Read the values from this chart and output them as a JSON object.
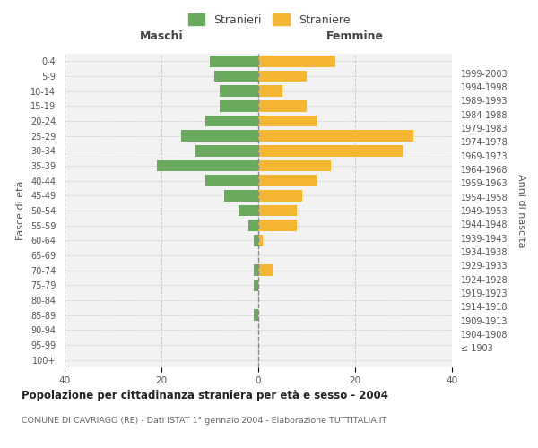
{
  "age_groups": [
    "100+",
    "95-99",
    "90-94",
    "85-89",
    "80-84",
    "75-79",
    "70-74",
    "65-69",
    "60-64",
    "55-59",
    "50-54",
    "45-49",
    "40-44",
    "35-39",
    "30-34",
    "25-29",
    "20-24",
    "15-19",
    "10-14",
    "5-9",
    "0-4"
  ],
  "birth_years": [
    "≤ 1903",
    "1904-1908",
    "1909-1913",
    "1914-1918",
    "1919-1923",
    "1924-1928",
    "1929-1933",
    "1934-1938",
    "1939-1943",
    "1944-1948",
    "1949-1953",
    "1954-1958",
    "1959-1963",
    "1964-1968",
    "1969-1973",
    "1974-1978",
    "1979-1983",
    "1984-1988",
    "1989-1993",
    "1994-1998",
    "1999-2003"
  ],
  "males": [
    0,
    0,
    0,
    1,
    0,
    1,
    1,
    0,
    1,
    2,
    4,
    7,
    11,
    21,
    13,
    16,
    11,
    8,
    8,
    9,
    10
  ],
  "females": [
    0,
    0,
    0,
    0,
    0,
    0,
    3,
    0,
    1,
    8,
    8,
    9,
    12,
    15,
    30,
    32,
    12,
    10,
    5,
    10,
    16
  ],
  "male_color": "#6aaa5e",
  "female_color": "#f5b731",
  "background_color": "#f2f2f2",
  "grid_color": "#cccccc",
  "title": "Popolazione per cittadinanza straniera per età e sesso - 2004",
  "subtitle": "COMUNE DI CAVRIAGO (RE) - Dati ISTAT 1° gennaio 2004 - Elaborazione TUTTITALIA.IT",
  "ylabel_left": "Fasce di età",
  "ylabel_right": "Anni di nascita",
  "xlabel_left": "Maschi",
  "xlabel_right": "Femmine",
  "legend_male": "Stranieri",
  "legend_female": "Straniere",
  "xlim": 40,
  "bar_height": 0.75
}
